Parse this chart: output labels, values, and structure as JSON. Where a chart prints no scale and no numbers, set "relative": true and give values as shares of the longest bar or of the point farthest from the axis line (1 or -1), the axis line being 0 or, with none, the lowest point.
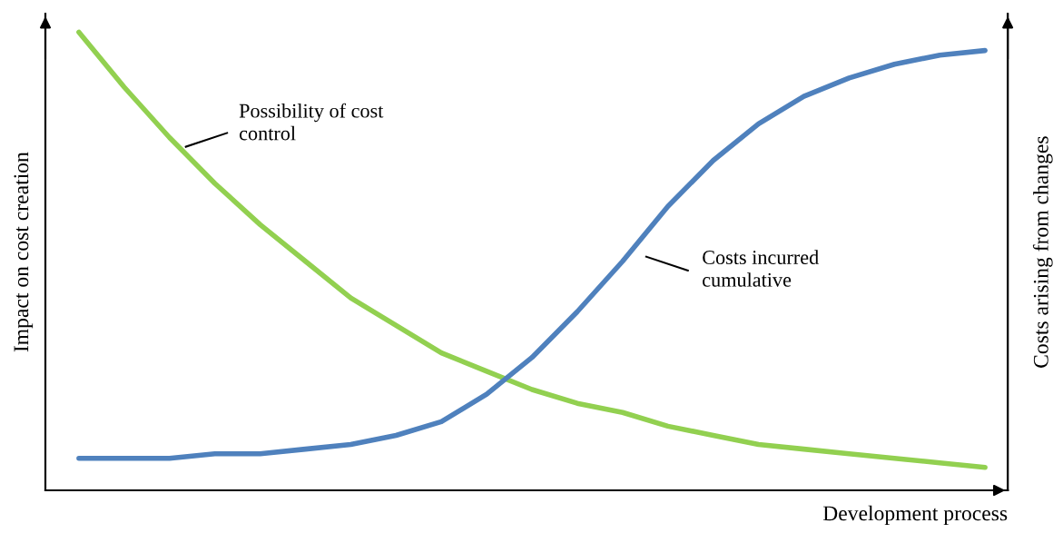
{
  "chart_data": {
    "type": "line",
    "relative": true,
    "xlabel": "Development process",
    "ylabel": "Impact on cost creation",
    "y2label": "Costs arising from changes",
    "categories": [
      null,
      null,
      null,
      null,
      null,
      null,
      null,
      null,
      null,
      null,
      null,
      null,
      null,
      null,
      null,
      null,
      null,
      null,
      null,
      null,
      null
    ],
    "series": [
      {
        "name": "Possibility of cost control",
        "color": "#92d050",
        "values": [
          1,
          0.88,
          0.77,
          0.67,
          0.58,
          0.5,
          0.42,
          0.36,
          0.3,
          0.26,
          0.22,
          0.19,
          0.17,
          0.14,
          0.12,
          0.1,
          0.09,
          0.08,
          0.07,
          0.06,
          0.05
        ]
      },
      {
        "name": "Costs incurred cumulative",
        "color": "#4f81bd",
        "values": [
          0.07,
          0.07,
          0.07,
          0.08,
          0.08,
          0.09,
          0.1,
          0.12,
          0.15,
          0.21,
          0.29,
          0.39,
          0.5,
          0.62,
          0.72,
          0.8,
          0.86,
          0.9,
          0.93,
          0.95,
          0.96
        ]
      }
    ],
    "legend": false,
    "marker": "none",
    "line_style": "solid"
  }
}
